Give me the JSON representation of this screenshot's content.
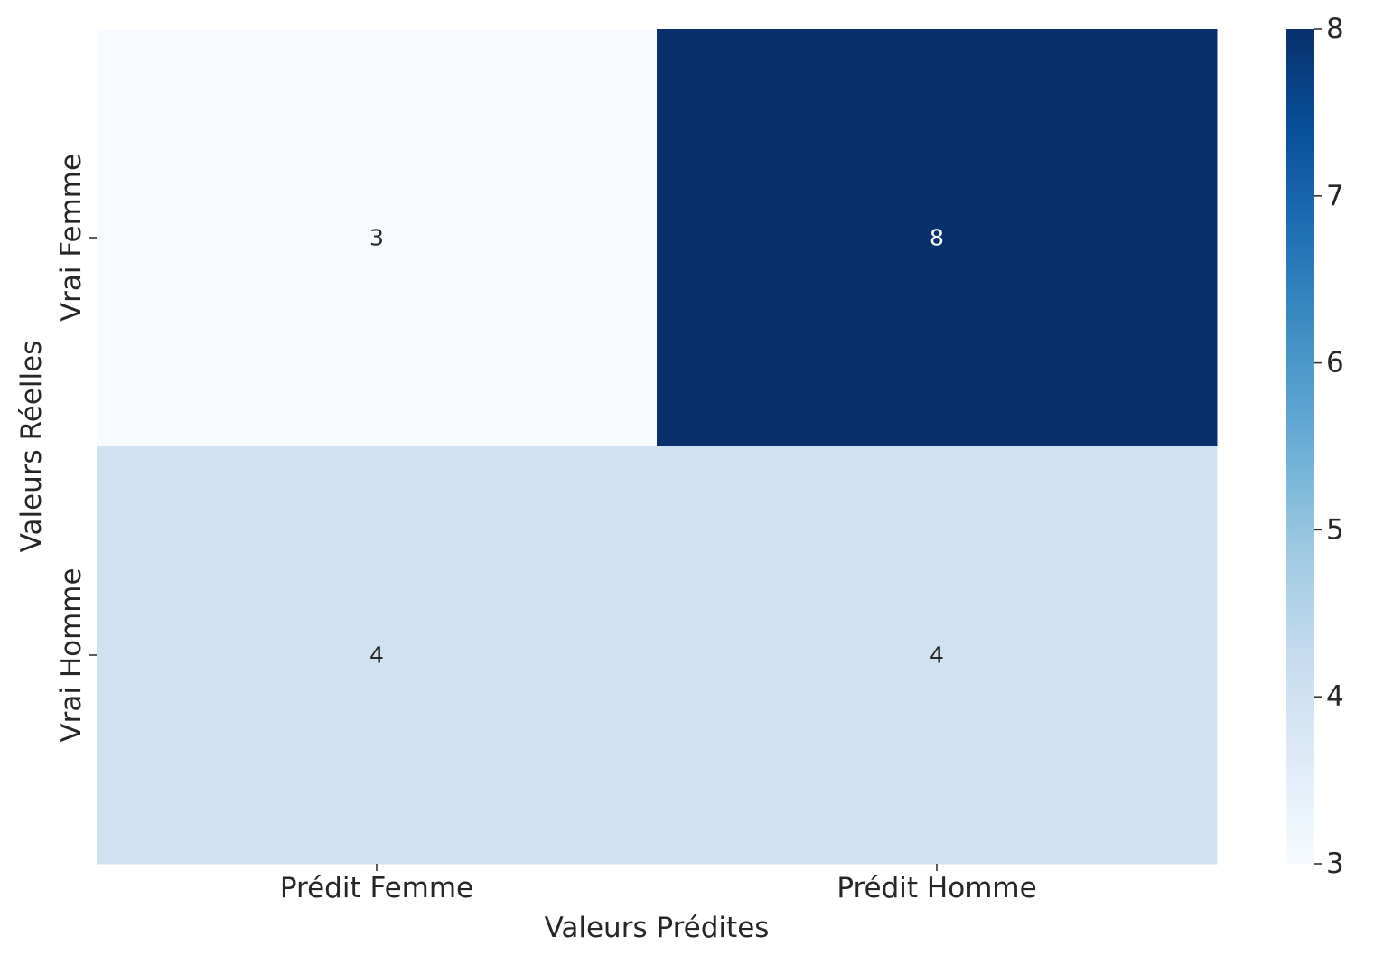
{
  "chart_data": {
    "type": "heatmap",
    "title": "",
    "xlabel": "Valeurs Prédites",
    "ylabel": "Valeurs Réelles",
    "x_categories": [
      "Prédit Femme",
      "Prédit Homme"
    ],
    "y_categories": [
      "Vrai Femme",
      "Vrai Homme"
    ],
    "values": [
      [
        3,
        8
      ],
      [
        4,
        4
      ]
    ],
    "annotations": true,
    "colormap": "Blues",
    "vmin": 3,
    "vmax": 8,
    "colorbar_ticks": [
      3,
      4,
      5,
      6,
      7,
      8
    ],
    "colorbar_tick_labels": [
      "3",
      "4",
      "5",
      "6",
      "7",
      "8"
    ],
    "grid": false
  }
}
